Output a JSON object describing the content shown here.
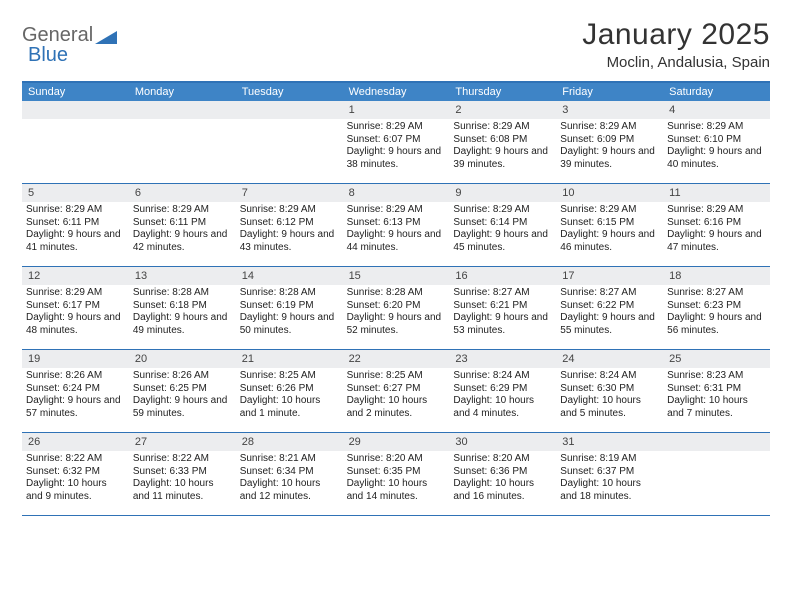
{
  "brand": {
    "text1": "General",
    "text2": "Blue"
  },
  "title": "January 2025",
  "location": "Moclin, Andalusia, Spain",
  "colors": {
    "header_bg": "#3e84c6",
    "header_border": "#2f72b6",
    "daynum_bg": "#ecedef",
    "text": "#222222"
  },
  "weekdays": [
    "Sunday",
    "Monday",
    "Tuesday",
    "Wednesday",
    "Thursday",
    "Friday",
    "Saturday"
  ],
  "weeks": [
    [
      null,
      null,
      null,
      {
        "n": "1",
        "sr": "8:29 AM",
        "ss": "6:07 PM",
        "dl": "9 hours and 38 minutes."
      },
      {
        "n": "2",
        "sr": "8:29 AM",
        "ss": "6:08 PM",
        "dl": "9 hours and 39 minutes."
      },
      {
        "n": "3",
        "sr": "8:29 AM",
        "ss": "6:09 PM",
        "dl": "9 hours and 39 minutes."
      },
      {
        "n": "4",
        "sr": "8:29 AM",
        "ss": "6:10 PM",
        "dl": "9 hours and 40 minutes."
      }
    ],
    [
      {
        "n": "5",
        "sr": "8:29 AM",
        "ss": "6:11 PM",
        "dl": "9 hours and 41 minutes."
      },
      {
        "n": "6",
        "sr": "8:29 AM",
        "ss": "6:11 PM",
        "dl": "9 hours and 42 minutes."
      },
      {
        "n": "7",
        "sr": "8:29 AM",
        "ss": "6:12 PM",
        "dl": "9 hours and 43 minutes."
      },
      {
        "n": "8",
        "sr": "8:29 AM",
        "ss": "6:13 PM",
        "dl": "9 hours and 44 minutes."
      },
      {
        "n": "9",
        "sr": "8:29 AM",
        "ss": "6:14 PM",
        "dl": "9 hours and 45 minutes."
      },
      {
        "n": "10",
        "sr": "8:29 AM",
        "ss": "6:15 PM",
        "dl": "9 hours and 46 minutes."
      },
      {
        "n": "11",
        "sr": "8:29 AM",
        "ss": "6:16 PM",
        "dl": "9 hours and 47 minutes."
      }
    ],
    [
      {
        "n": "12",
        "sr": "8:29 AM",
        "ss": "6:17 PM",
        "dl": "9 hours and 48 minutes."
      },
      {
        "n": "13",
        "sr": "8:28 AM",
        "ss": "6:18 PM",
        "dl": "9 hours and 49 minutes."
      },
      {
        "n": "14",
        "sr": "8:28 AM",
        "ss": "6:19 PM",
        "dl": "9 hours and 50 minutes."
      },
      {
        "n": "15",
        "sr": "8:28 AM",
        "ss": "6:20 PM",
        "dl": "9 hours and 52 minutes."
      },
      {
        "n": "16",
        "sr": "8:27 AM",
        "ss": "6:21 PM",
        "dl": "9 hours and 53 minutes."
      },
      {
        "n": "17",
        "sr": "8:27 AM",
        "ss": "6:22 PM",
        "dl": "9 hours and 55 minutes."
      },
      {
        "n": "18",
        "sr": "8:27 AM",
        "ss": "6:23 PM",
        "dl": "9 hours and 56 minutes."
      }
    ],
    [
      {
        "n": "19",
        "sr": "8:26 AM",
        "ss": "6:24 PM",
        "dl": "9 hours and 57 minutes."
      },
      {
        "n": "20",
        "sr": "8:26 AM",
        "ss": "6:25 PM",
        "dl": "9 hours and 59 minutes."
      },
      {
        "n": "21",
        "sr": "8:25 AM",
        "ss": "6:26 PM",
        "dl": "10 hours and 1 minute."
      },
      {
        "n": "22",
        "sr": "8:25 AM",
        "ss": "6:27 PM",
        "dl": "10 hours and 2 minutes."
      },
      {
        "n": "23",
        "sr": "8:24 AM",
        "ss": "6:29 PM",
        "dl": "10 hours and 4 minutes."
      },
      {
        "n": "24",
        "sr": "8:24 AM",
        "ss": "6:30 PM",
        "dl": "10 hours and 5 minutes."
      },
      {
        "n": "25",
        "sr": "8:23 AM",
        "ss": "6:31 PM",
        "dl": "10 hours and 7 minutes."
      }
    ],
    [
      {
        "n": "26",
        "sr": "8:22 AM",
        "ss": "6:32 PM",
        "dl": "10 hours and 9 minutes."
      },
      {
        "n": "27",
        "sr": "8:22 AM",
        "ss": "6:33 PM",
        "dl": "10 hours and 11 minutes."
      },
      {
        "n": "28",
        "sr": "8:21 AM",
        "ss": "6:34 PM",
        "dl": "10 hours and 12 minutes."
      },
      {
        "n": "29",
        "sr": "8:20 AM",
        "ss": "6:35 PM",
        "dl": "10 hours and 14 minutes."
      },
      {
        "n": "30",
        "sr": "8:20 AM",
        "ss": "6:36 PM",
        "dl": "10 hours and 16 minutes."
      },
      {
        "n": "31",
        "sr": "8:19 AM",
        "ss": "6:37 PM",
        "dl": "10 hours and 18 minutes."
      },
      null
    ]
  ],
  "labels": {
    "sunrise": "Sunrise:",
    "sunset": "Sunset:",
    "daylight": "Daylight:"
  }
}
